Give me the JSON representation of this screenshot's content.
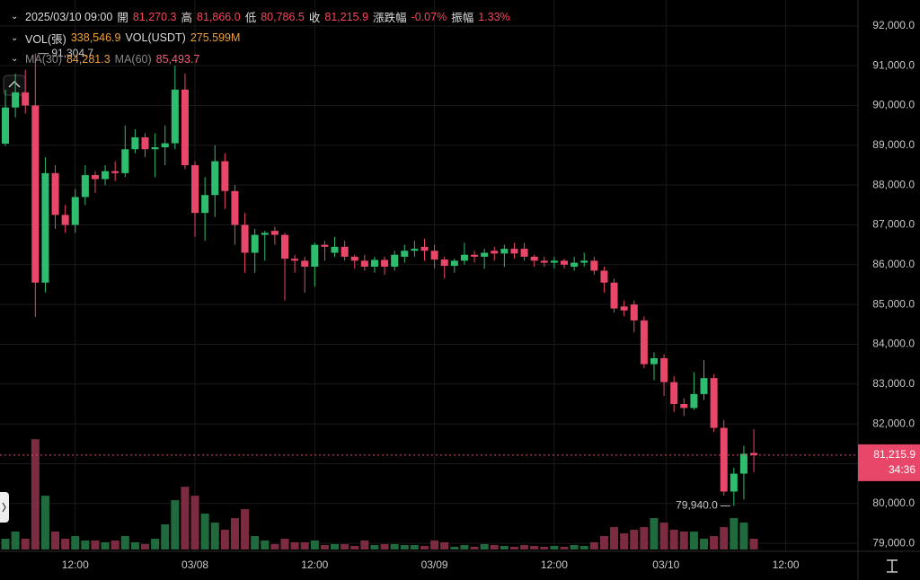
{
  "chart_data": {
    "type": "candlestick",
    "header": [
      [
        {
          "text": "2025/03/10 09:00"
        },
        {
          "text": "開"
        },
        {
          "text": "81,270.3",
          "color": "#f6465d"
        },
        {
          "text": "高"
        },
        {
          "text": "81,866.0",
          "color": "#f6465d"
        },
        {
          "text": "低"
        },
        {
          "text": "80,786.5",
          "color": "#f6465d"
        },
        {
          "text": "收"
        },
        {
          "text": "81,215.9",
          "color": "#f6465d"
        },
        {
          "text": "漲跌幅"
        },
        {
          "text": "-0.07%",
          "color": "#f6465d"
        },
        {
          "text": "振幅"
        },
        {
          "text": "1.33%",
          "color": "#f6465d"
        }
      ],
      [
        {
          "text": "VOL(張)"
        },
        {
          "text": "338,546.9",
          "color": "#f0a13a"
        },
        {
          "text": "VOL(USDT)"
        },
        {
          "text": "275.599M",
          "color": "#f0a13a"
        }
      ],
      [
        {
          "text": "MA(30)",
          "color": "#888"
        },
        {
          "text": "84,281.3",
          "color": "#f0a13a"
        },
        {
          "text": "MA(60)",
          "color": "#888"
        },
        {
          "text": "85,493.7",
          "color": "#f0607a"
        }
      ]
    ],
    "open": [
      89040,
      89950,
      90330,
      90000,
      85550,
      88300,
      87250,
      87000,
      87700,
      88250,
      88150,
      88350,
      88300,
      88900,
      89200,
      88900,
      88950,
      89050,
      90400,
      88500,
      87300,
      87750,
      88600,
      87850,
      87000,
      86300,
      86750,
      86850,
      86750,
      86150,
      86100,
      85950,
      86500,
      86300,
      86450,
      86200,
      86100,
      85950,
      86120,
      85950,
      86200,
      86350,
      86450,
      86350,
      86130,
      85970,
      86100,
      86250,
      86200,
      86350,
      86280,
      86400,
      86400,
      86200,
      86100,
      86050,
      86100,
      85950,
      86050,
      86100,
      85850,
      85550,
      84950,
      85000,
      84600,
      83500,
      83650,
      83050,
      82500,
      82400,
      82750,
      83150,
      81900,
      80300,
      80750,
      81270.3
    ],
    "high": [
      90400,
      90800,
      90900,
      91304.7,
      88700,
      88500,
      87500,
      87900,
      88500,
      88350,
      88500,
      88600,
      89500,
      89400,
      89300,
      89300,
      89500,
      91000,
      90800,
      88600,
      88200,
      89000,
      88800,
      88000,
      87300,
      86900,
      86850,
      86950,
      86800,
      86250,
      86200,
      86550,
      86600,
      86700,
      86600,
      86250,
      86250,
      86200,
      86200,
      86350,
      86500,
      86600,
      86650,
      86500,
      86200,
      86150,
      86550,
      86350,
      86400,
      86450,
      86500,
      86550,
      86550,
      86250,
      86200,
      86200,
      86150,
      86200,
      86300,
      86200,
      85950,
      85650,
      85100,
      85100,
      84700,
      83800,
      83750,
      83200,
      82650,
      83300,
      83600,
      83250,
      82100,
      80900,
      81450,
      81866.0
    ],
    "low": [
      88980,
      89700,
      89800,
      84690,
      85300,
      86900,
      86800,
      86800,
      87500,
      87800,
      88000,
      88100,
      88200,
      88800,
      88700,
      88200,
      88500,
      88900,
      88400,
      86700,
      86600,
      87200,
      87400,
      86500,
      85800,
      85800,
      86100,
      86500,
      85100,
      85800,
      85300,
      85450,
      86100,
      86200,
      86100,
      85900,
      85850,
      85800,
      85750,
      85850,
      86050,
      86200,
      86100,
      85900,
      85650,
      85800,
      86000,
      86050,
      85900,
      86100,
      85950,
      86150,
      86100,
      85950,
      85950,
      85900,
      85900,
      85850,
      85950,
      85750,
      85300,
      84800,
      84700,
      84300,
      83400,
      83100,
      82700,
      82300,
      82200,
      82350,
      82600,
      81800,
      80200,
      79940,
      80100,
      80786.5
    ],
    "close": [
      89950,
      90330,
      90000,
      85550,
      88300,
      87250,
      87000,
      87700,
      88250,
      88150,
      88350,
      88300,
      88900,
      89200,
      88900,
      88950,
      89050,
      90400,
      88500,
      87300,
      87750,
      88600,
      87850,
      87000,
      86300,
      86750,
      86800,
      86750,
      86150,
      86100,
      85950,
      86500,
      86450,
      86450,
      86200,
      86100,
      85950,
      86120,
      85950,
      86250,
      86350,
      86400,
      86350,
      86130,
      85970,
      86100,
      86250,
      86200,
      86300,
      86280,
      86400,
      86280,
      86200,
      86100,
      86050,
      86100,
      86000,
      86050,
      86100,
      85850,
      85550,
      84900,
      84850,
      84600,
      83500,
      83650,
      83050,
      82500,
      82400,
      82750,
      83150,
      81900,
      80300,
      80750,
      81250,
      81215.9
    ],
    "volume": [
      338000,
      564000,
      338000,
      3469000,
      1692000,
      564000,
      338000,
      423000,
      282000,
      282000,
      226000,
      282000,
      423000,
      226000,
      169000,
      338000,
      790000,
      1551000,
      1974000,
      1692000,
      1128000,
      846000,
      620000,
      987000,
      1269000,
      423000,
      282000,
      169000,
      338000,
      226000,
      226000,
      282000,
      141000,
      169000,
      169000,
      113000,
      282000,
      141000,
      169000,
      169000,
      141000,
      141000,
      113000,
      282000,
      226000,
      85000,
      141000,
      85000,
      169000,
      141000,
      113000,
      85000,
      141000,
      113000,
      85000,
      113000,
      85000,
      141000,
      113000,
      226000,
      423000,
      705000,
      508000,
      620000,
      705000,
      987000,
      846000,
      620000,
      564000,
      564000,
      338000,
      423000,
      705000,
      987000,
      846000,
      338546.9
    ],
    "up_color": "#2ebd6e",
    "down_color": "#e8476a",
    "up_volume_color": "#1f6b3e",
    "down_volume_color": "#7c2b40",
    "ylim": [
      78800,
      92650
    ],
    "volume_lim": [
      0,
      5000000
    ],
    "xlim": [
      -0.54,
      85.44
    ],
    "yticks": [
      {
        "value": 92000,
        "label": "92,000.0"
      },
      {
        "value": 91000,
        "label": "91,000.0"
      },
      {
        "value": 90000,
        "label": "90,000.0"
      },
      {
        "value": 89000,
        "label": "89,000.0"
      },
      {
        "value": 88000,
        "label": "88,000.0"
      },
      {
        "value": 87000,
        "label": "87,000.0"
      },
      {
        "value": 86000,
        "label": "86,000.0"
      },
      {
        "value": 85000,
        "label": "85,000.0"
      },
      {
        "value": 84000,
        "label": "84,000.0"
      },
      {
        "value": 83000,
        "label": "83,000.0"
      },
      {
        "value": 82000,
        "label": "82,000.0"
      },
      {
        "value": 81000,
        "label": "81,000.0"
      },
      {
        "value": 80000,
        "label": "80,000.0"
      },
      {
        "value": 79000,
        "label": "79,000.0"
      }
    ],
    "xticks": [
      {
        "value": 7,
        "label": "12:00"
      },
      {
        "value": 19,
        "label": "03/08"
      },
      {
        "value": 31,
        "label": "12:00"
      },
      {
        "value": 43,
        "label": "03/09"
      },
      {
        "value": 55,
        "label": "12:00"
      },
      {
        "value": 66.2,
        "label": "03/10"
      },
      {
        "value": 78.2,
        "label": "12:00"
      }
    ],
    "grid": true,
    "max_label": {
      "value": 91304.7,
      "label": "91,304.7"
    },
    "min_label": {
      "value": 79940,
      "label": "79,940.0"
    },
    "price_tag": {
      "value": 81215.9,
      "label": "81,215.9",
      "countdown": "34:36"
    }
  }
}
